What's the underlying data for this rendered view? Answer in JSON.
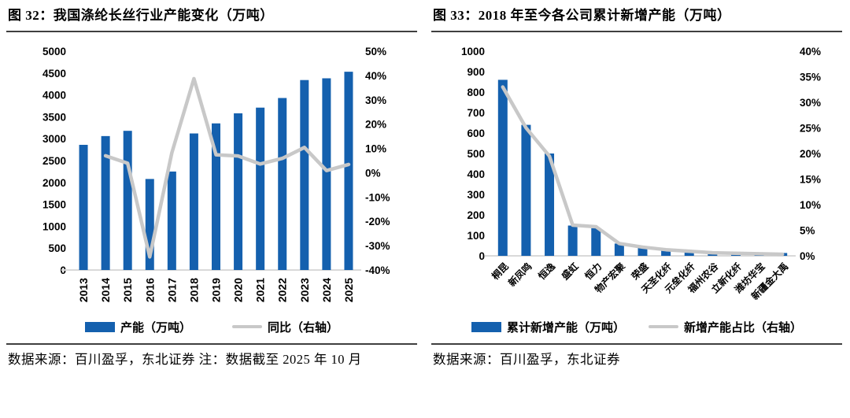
{
  "colors": {
    "bar_blue": "#1460AE",
    "line_gray": "#C8C8C8",
    "baseline_gray": "#D9D9D9",
    "rule_dark": "#3F3F3F",
    "text": "#000000"
  },
  "fig32": {
    "title": "图 32：我国涤纶长丝行业产能变化（万吨）",
    "legend_bar": "产能（万吨）",
    "legend_line": "同比（右轴）",
    "source": "数据来源：百川盈孚，东北证券  注：数据截至 2025 年 10 月"
  },
  "fig33": {
    "title": "图 33：2018 年至今各公司累计新增产能（万吨）",
    "legend_bar": "累计新增产能（万吨）",
    "legend_line": "新增产能占比（右轴）",
    "source": "数据来源：百川盈孚，东北证券"
  },
  "chart_data": [
    {
      "type": "bar+line",
      "title": "图 32：我国涤纶长丝行业产能变化（万吨）",
      "categories": [
        "2013",
        "2014",
        "2015",
        "2016",
        "2017",
        "2018",
        "2019",
        "2020",
        "2021",
        "2022",
        "2023",
        "2024",
        "2025"
      ],
      "series": [
        {
          "name": "产能（万吨）",
          "type": "bar",
          "axis": "left",
          "values": [
            2860,
            3060,
            3180,
            2080,
            2250,
            3120,
            3350,
            3580,
            3710,
            3930,
            4340,
            4380,
            4530
          ]
        },
        {
          "name": "同比（右轴）",
          "type": "line",
          "axis": "right",
          "values": [
            null,
            7.0,
            3.9,
            -34.6,
            8.2,
            38.7,
            7.4,
            6.9,
            3.6,
            5.9,
            10.4,
            0.9,
            3.4
          ]
        }
      ],
      "left_axis": {
        "min": 0,
        "max": 5000,
        "step": 500
      },
      "right_axis": {
        "min": -40,
        "max": 50,
        "step": 10,
        "format": "percent"
      },
      "legend_position": "bottom",
      "grid": false
    },
    {
      "type": "bar+line",
      "title": "图 33：2018 年至今各公司累计新增产能（万吨）",
      "categories": [
        "桐昆",
        "新凤鸣",
        "恒逸",
        "盛虹",
        "恒力",
        "物产宏聚",
        "荣盛",
        "天圣化纤",
        "元垒化纤",
        "福州农谷",
        "立新化纤",
        "潍坊华宝",
        "新疆金大禹"
      ],
      "series": [
        {
          "name": "累计新增产能（万吨）",
          "type": "bar",
          "axis": "left",
          "values": [
            860,
            640,
            500,
            148,
            135,
            60,
            40,
            28,
            20,
            8,
            10,
            5,
            14
          ]
        },
        {
          "name": "新增产能占比（右轴）",
          "type": "line",
          "axis": "right",
          "values": [
            33,
            25,
            19.5,
            6,
            5.7,
            2.4,
            1.7,
            1.2,
            0.9,
            0.6,
            0.5,
            0.4,
            0.3
          ]
        }
      ],
      "left_axis": {
        "min": 0,
        "max": 1000,
        "step": 100
      },
      "right_axis": {
        "min": 0,
        "max": 40,
        "step": 5,
        "format": "percent"
      },
      "legend_position": "bottom",
      "grid": false
    }
  ]
}
